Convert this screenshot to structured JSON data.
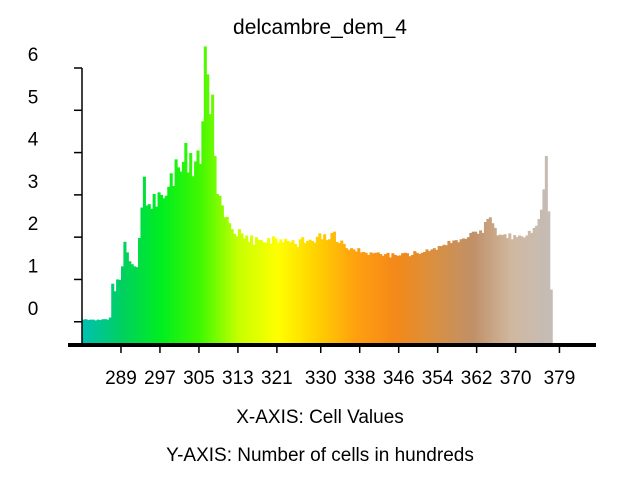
{
  "chart_data": {
    "type": "bar",
    "title": "delcambre_dem_4",
    "xlabel": "X-AXIS: Cell Values",
    "ylabel": "Y-AXIS: Number of cells in hundreds",
    "x_ticks": [
      "289",
      "297",
      "305",
      "313",
      "321",
      "330",
      "338",
      "346",
      "354",
      "362",
      "370",
      "379"
    ],
    "x_tick_values": [
      289,
      297,
      305,
      313,
      321,
      330,
      338,
      346,
      354,
      362,
      370,
      379
    ],
    "y_ticks": [
      "0",
      "1",
      "2",
      "3",
      "4",
      "5",
      "6"
    ],
    "y_tick_values": [
      0,
      1,
      2,
      3,
      4,
      5,
      6
    ],
    "xlim": [
      281,
      386.5
    ],
    "ylim": [
      -0.55,
      6
    ],
    "grid": false,
    "bin_width": 0.5,
    "x_start": 281,
    "values": [
      0.05,
      0.06,
      0.04,
      0.05,
      0.05,
      0.03,
      0.05,
      0.04,
      0.06,
      0.06,
      0.05,
      0.1,
      0.9,
      0.72,
      1.0,
      0.99,
      1.31,
      1.89,
      1.64,
      1.43,
      1.36,
      1.31,
      1.29,
      1.98,
      2.7,
      3.43,
      2.75,
      2.78,
      2.67,
      3.02,
      2.72,
      3.06,
      3.0,
      2.92,
      2.98,
      3.19,
      3.51,
      3.21,
      3.84,
      3.65,
      3.55,
      3.78,
      4.23,
      3.53,
      3.99,
      3.44,
      3.79,
      4.05,
      3.73,
      4.74,
      6.51,
      5.85,
      4.91,
      5.37,
      3.92,
      3.02,
      2.98,
      2.75,
      2.47,
      2.48,
      2.33,
      2.19,
      2.08,
      2.02,
      2.19,
      2.09,
      1.97,
      2.04,
      1.89,
      2.04,
      1.82,
      2.0,
      1.94,
      1.93,
      1.88,
      1.87,
      1.98,
      1.85,
      2.02,
      1.97,
      1.87,
      1.95,
      1.88,
      1.96,
      1.91,
      1.88,
      1.93,
      1.84,
      1.77,
      1.95,
      2.0,
      1.86,
      1.91,
      1.94,
      1.91,
      1.87,
      2.01,
      2.09,
      1.95,
      2.07,
      1.93,
      1.95,
      2.1,
      2.13,
      1.89,
      1.86,
      1.92,
      1.84,
      1.74,
      1.7,
      1.74,
      1.71,
      1.66,
      1.74,
      1.64,
      1.65,
      1.63,
      1.58,
      1.64,
      1.62,
      1.63,
      1.64,
      1.6,
      1.56,
      1.6,
      1.63,
      1.52,
      1.62,
      1.58,
      1.56,
      1.57,
      1.62,
      1.63,
      1.62,
      1.55,
      1.58,
      1.67,
      1.63,
      1.6,
      1.63,
      1.65,
      1.71,
      1.67,
      1.71,
      1.74,
      1.7,
      1.79,
      1.79,
      1.82,
      1.81,
      1.91,
      1.86,
      1.92,
      1.93,
      1.88,
      1.95,
      1.97,
      1.96,
      2.0,
      2.1,
      2.13,
      2.13,
      2.08,
      2.16,
      2.1,
      2.36,
      2.43,
      2.47,
      2.33,
      2.22,
      2.04,
      2.06,
      2.05,
      2.07,
      1.98,
      2.09,
      1.95,
      2.05,
      2.0,
      2.04,
      2.02,
      1.99,
      2.04,
      2.15,
      2.1,
      2.22,
      2.27,
      2.43,
      2.65,
      3.13,
      3.92,
      2.61,
      0.76
    ],
    "colormap": [
      "#00c0b0",
      "#00d060",
      "#00ee20",
      "#40f800",
      "#c8ff00",
      "#ffff00",
      "#ffd000",
      "#ffa010",
      "#f48818",
      "#d89040",
      "#c09068",
      "#d0b8a0",
      "#c4bcb6"
    ]
  }
}
